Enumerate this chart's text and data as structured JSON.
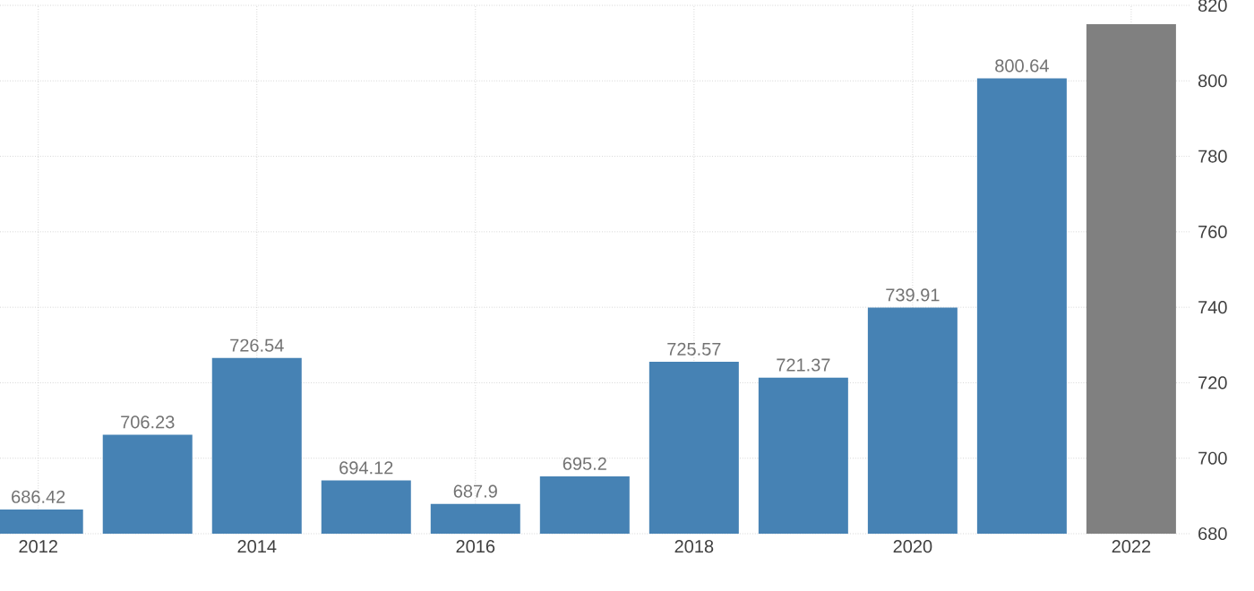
{
  "chart_data": {
    "type": "bar",
    "categories": [
      "2012",
      null,
      "2014",
      null,
      "2016",
      null,
      "2018",
      null,
      "2020",
      null,
      "2022"
    ],
    "values": [
      686.42,
      706.23,
      726.54,
      694.12,
      687.9,
      695.2,
      725.57,
      721.37,
      739.91,
      800.64,
      815
    ],
    "colors": [
      "#4682b4",
      "#4682b4",
      "#4682b4",
      "#4682b4",
      "#4682b4",
      "#4682b4",
      "#4682b4",
      "#4682b4",
      "#4682b4",
      "#4682b4",
      "#808080"
    ],
    "value_labels": [
      "686.42",
      "706.23",
      "726.54",
      "694.12",
      "687.9",
      "695.2",
      "725.57",
      "721.37",
      "739.91",
      "800.64",
      null
    ],
    "ylim": [
      680,
      820
    ],
    "yticks": [
      680,
      700,
      720,
      740,
      760,
      780,
      800,
      820
    ],
    "grid": true
  }
}
